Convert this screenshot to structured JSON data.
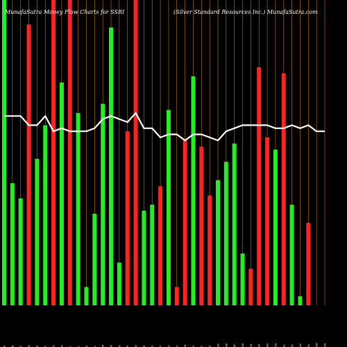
{
  "header": {
    "left": "MunafaSutra  Money Flow  Charts for SSRI",
    "right": "(Silver Standard Resources Inc.) MunafaSutra.com"
  },
  "chart_data": {
    "type": "bar",
    "title": "MunafaSutra  Money Flow  Charts for SSRI",
    "subtitle": "(Silver Standard Resources Inc.) MunafaSutra.com",
    "ylim": [
      0,
      100
    ],
    "colors": {
      "up": "#22ee22",
      "down": "#ff2222",
      "grid": "#c8781e",
      "line": "#ffffff",
      "background": "#000000"
    },
    "categories": [
      "A",
      "B",
      "C",
      "D",
      "E",
      "F",
      "G",
      "H",
      "I",
      "J",
      "K",
      "L",
      "M",
      "N",
      "O",
      "P",
      "Q",
      "R",
      "S",
      "T",
      "U",
      "V",
      "W",
      "X",
      "Y",
      "Z",
      "AA",
      "AB",
      "AC",
      "AD",
      "AE",
      "AF",
      "AG",
      "AH",
      "AI",
      "AJ",
      "AK",
      "AL",
      "AM",
      "AN"
    ],
    "values": [
      100,
      40,
      35,
      92,
      48,
      59,
      100,
      73,
      100,
      63,
      6,
      30,
      66,
      91,
      14,
      57,
      100,
      31,
      33,
      39,
      64,
      6,
      54,
      75,
      52,
      36,
      41,
      47,
      53,
      17,
      12,
      78,
      55,
      51,
      76,
      33,
      3,
      27,
      0,
      0
    ],
    "directions": [
      "up",
      "up",
      "up",
      "down",
      "up",
      "up",
      "down",
      "up",
      "down",
      "up",
      "up",
      "up",
      "up",
      "up",
      "up",
      "down",
      "down",
      "up",
      "up",
      "down",
      "up",
      "down",
      "down",
      "up",
      "down",
      "down",
      "up",
      "up",
      "up",
      "up",
      "down",
      "down",
      "down",
      "up",
      "down",
      "up",
      "up",
      "down",
      "up",
      "up"
    ],
    "flow_line": [
      62,
      62,
      62,
      59,
      59,
      62,
      57,
      58,
      57,
      57,
      57,
      58,
      61,
      62,
      61,
      60,
      63,
      58,
      58,
      55,
      56,
      56,
      54,
      56,
      56,
      55,
      54,
      57,
      58,
      59,
      59,
      59,
      59,
      58,
      58,
      59,
      58,
      59,
      57,
      57
    ]
  }
}
